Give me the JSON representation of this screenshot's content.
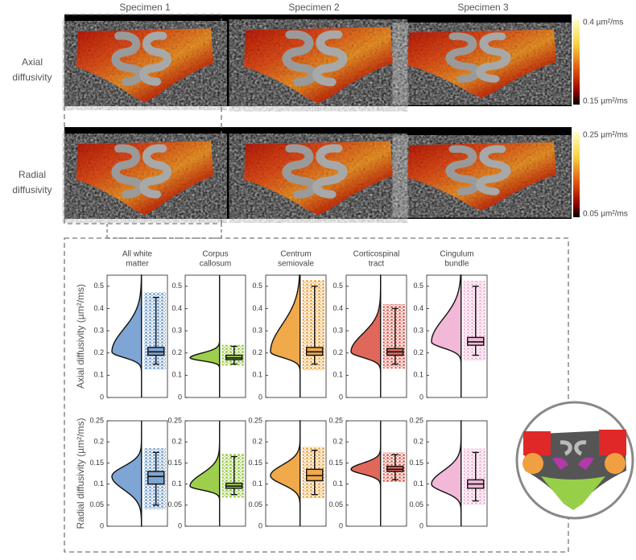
{
  "maps": {
    "columns": [
      "Specimen 1",
      "Specimen 2",
      "Specimen 3"
    ],
    "rows": [
      {
        "label": [
          "Axial",
          "diffusivity"
        ],
        "colorbar_max": "0.4 µm²/ms",
        "colorbar_min": "0.15 µm²/ms"
      },
      {
        "label": [
          "Radial",
          "diffusivity"
        ],
        "colorbar_max": "0.25 µm²/ms",
        "colorbar_min": "0.05 µm²/ms"
      }
    ]
  },
  "chart_data": [
    {
      "type": "violin",
      "title": [
        "All white",
        "matter"
      ],
      "ylabel": "Axial diffusivity (µm²/ms)",
      "color": "#7ea5d3",
      "ylim": [
        0,
        0.55
      ],
      "yticks": [
        0,
        0.1,
        0.2,
        0.3,
        0.4,
        0.5
      ],
      "box": {
        "whisker_low": 0.15,
        "q1": 0.19,
        "median": 0.205,
        "q3": 0.225,
        "whisker_high": 0.45
      }
    },
    {
      "type": "violin",
      "title": [
        "Corpus",
        "callosum"
      ],
      "color": "#9dcf4c",
      "ylim": [
        0,
        0.55
      ],
      "yticks": [
        0,
        0.1,
        0.2,
        0.3,
        0.4,
        0.5
      ],
      "box": {
        "whisker_low": 0.15,
        "q1": 0.17,
        "median": 0.178,
        "q3": 0.19,
        "whisker_high": 0.23
      }
    },
    {
      "type": "violin",
      "title": [
        "Centrum",
        "semiovale"
      ],
      "color": "#f0a94b",
      "ylim": [
        0,
        0.55
      ],
      "yticks": [
        0,
        0.1,
        0.2,
        0.3,
        0.4,
        0.5
      ],
      "box": {
        "whisker_low": 0.15,
        "q1": 0.19,
        "median": 0.205,
        "q3": 0.225,
        "whisker_high": 0.5
      }
    },
    {
      "type": "violin",
      "title": [
        "Corticospinal",
        "tract"
      ],
      "color": "#e0685b",
      "ylim": [
        0,
        0.55
      ],
      "yticks": [
        0,
        0.1,
        0.2,
        0.3,
        0.4,
        0.5
      ],
      "box": {
        "whisker_low": 0.15,
        "q1": 0.19,
        "median": 0.205,
        "q3": 0.22,
        "whisker_high": 0.4
      }
    },
    {
      "type": "violin",
      "title": [
        "Cingulum",
        "bundle"
      ],
      "color": "#f2b8d8",
      "ylim": [
        0,
        0.55
      ],
      "yticks": [
        0,
        0.1,
        0.2,
        0.3,
        0.4,
        0.5
      ],
      "box": {
        "whisker_low": 0.19,
        "q1": 0.235,
        "median": 0.25,
        "q3": 0.27,
        "whisker_high": 0.5
      }
    },
    {
      "type": "violin",
      "ylabel": "Radial diffusivity (µm²/ms)",
      "color": "#7ea5d3",
      "ylim": [
        0,
        0.25
      ],
      "yticks": [
        0,
        0.05,
        0.1,
        0.15,
        0.2,
        0.25
      ],
      "box": {
        "whisker_low": 0.05,
        "q1": 0.1,
        "median": 0.118,
        "q3": 0.13,
        "whisker_high": 0.175
      }
    },
    {
      "type": "violin",
      "color": "#9dcf4c",
      "ylim": [
        0,
        0.25
      ],
      "yticks": [
        0,
        0.05,
        0.1,
        0.15,
        0.2,
        0.25
      ],
      "box": {
        "whisker_low": 0.075,
        "q1": 0.09,
        "median": 0.095,
        "q3": 0.102,
        "whisker_high": 0.165
      }
    },
    {
      "type": "violin",
      "color": "#f0a94b",
      "ylim": [
        0,
        0.25
      ],
      "yticks": [
        0,
        0.05,
        0.1,
        0.15,
        0.2,
        0.25
      ],
      "box": {
        "whisker_low": 0.075,
        "q1": 0.108,
        "median": 0.12,
        "q3": 0.135,
        "whisker_high": 0.18
      }
    },
    {
      "type": "violin",
      "color": "#e0685b",
      "ylim": [
        0,
        0.25
      ],
      "yticks": [
        0,
        0.05,
        0.1,
        0.15,
        0.2,
        0.25
      ],
      "box": {
        "whisker_low": 0.11,
        "q1": 0.13,
        "median": 0.135,
        "q3": 0.142,
        "whisker_high": 0.17
      }
    },
    {
      "type": "violin",
      "color": "#f2b8d8",
      "ylim": [
        0,
        0.25
      ],
      "yticks": [
        0,
        0.05,
        0.1,
        0.15,
        0.2,
        0.25
      ],
      "box": {
        "whisker_low": 0.06,
        "q1": 0.09,
        "median": 0.1,
        "q3": 0.11,
        "whisker_high": 0.175
      }
    }
  ]
}
